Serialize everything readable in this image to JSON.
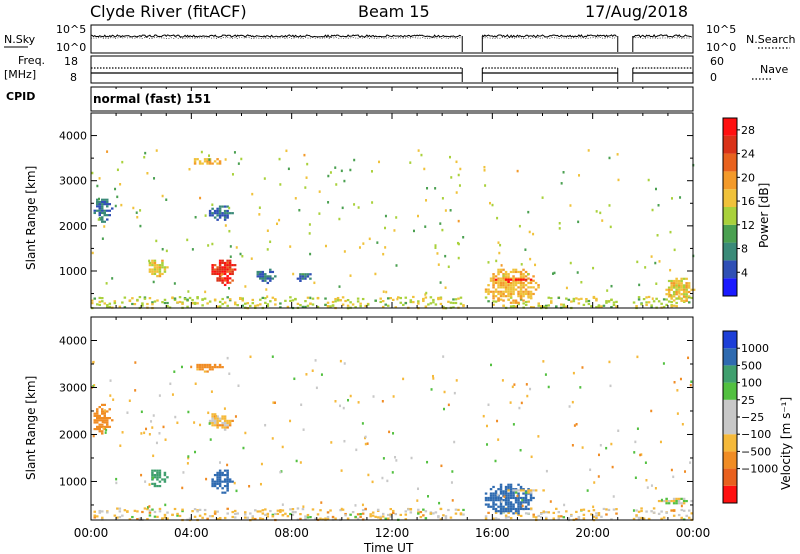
{
  "header": {
    "station": "Clyde River (fitACF)",
    "beam": "Beam 15",
    "date": "17/Aug/2018"
  },
  "control_panel": {
    "nsky_label": "N.Sky",
    "nsearch_label": "N.Search",
    "freq_label": "Freq.",
    "freq_unit": "[MHz]",
    "nave_label": "Nave",
    "cpid_label": "CPID",
    "cpid_value": "normal (fast) 151",
    "noise_left_ticks": [
      "10^5",
      "10^0"
    ],
    "noise_right_ticks": [
      "10^5",
      "10^0"
    ],
    "freq_left_ticks": [
      "18",
      "8"
    ],
    "nave_right_ticks": [
      "60",
      "0"
    ]
  },
  "colors": {
    "power_scale": [
      "#1a1aff",
      "#2f4fb5",
      "#3a8a78",
      "#4aa050",
      "#a9d13b",
      "#f0c23a",
      "#f39a2a",
      "#e8621e",
      "#d93218",
      "#ff1010"
    ],
    "velocity_scale": [
      "#ff1010",
      "#e8601e",
      "#f08c24",
      "#f5b93a",
      "#c8c8c8",
      "#c8c8c8",
      "#52c040",
      "#3f9f6e",
      "#2e6ab0",
      "#1d3fd8"
    ]
  },
  "chart_data": [
    {
      "type": "heatmap",
      "name": "Power range-time plot",
      "xlabel": "",
      "ylabel": "Slant Range [km]",
      "x_ticks": [
        "00:00",
        "04:00",
        "08:00",
        "12:00",
        "16:00",
        "20:00",
        "00:00"
      ],
      "xlim_hours": [
        0,
        24
      ],
      "y_ticks": [
        1000,
        2000,
        3000,
        4000
      ],
      "ylim_km": [
        180,
        4500
      ],
      "colorbar": {
        "label": "Power [dB]",
        "ticks": [
          "4",
          "8",
          "12",
          "16",
          "20",
          "24",
          "28"
        ],
        "range": [
          0,
          30
        ]
      },
      "data_gaps_hours": [
        [
          14.8,
          15.6
        ],
        [
          21.0,
          21.6
        ]
      ],
      "echo_regions": [
        {
          "t0": 0.0,
          "t1": 0.8,
          "r0": 2100,
          "r1": 2700,
          "value": 6
        },
        {
          "t0": 2.2,
          "t1": 3.0,
          "r0": 900,
          "r1": 1300,
          "value": 16
        },
        {
          "t0": 4.0,
          "t1": 5.2,
          "r0": 3350,
          "r1": 3550,
          "value": 18
        },
        {
          "t0": 4.6,
          "t1": 5.6,
          "r0": 2100,
          "r1": 2500,
          "value": 6
        },
        {
          "t0": 4.7,
          "t1": 5.8,
          "r0": 700,
          "r1": 1300,
          "value": 26
        },
        {
          "t0": 6.5,
          "t1": 7.3,
          "r0": 750,
          "r1": 1100,
          "value": 6
        },
        {
          "t0": 8.0,
          "t1": 8.8,
          "r0": 800,
          "r1": 1000,
          "value": 7
        },
        {
          "t0": 15.6,
          "t1": 17.8,
          "r0": 300,
          "r1": 1100,
          "value": 18
        },
        {
          "t0": 16.0,
          "t1": 17.5,
          "r0": 780,
          "r1": 880,
          "value": 28
        },
        {
          "t0": 22.8,
          "t1": 24.0,
          "r0": 300,
          "r1": 900,
          "value": 16
        }
      ]
    },
    {
      "type": "heatmap",
      "name": "Velocity range-time plot",
      "xlabel": "Time UT",
      "ylabel": "Slant Range [km]",
      "x_ticks": [
        "00:00",
        "04:00",
        "08:00",
        "12:00",
        "16:00",
        "20:00",
        "00:00"
      ],
      "xlim_hours": [
        0,
        24
      ],
      "y_ticks": [
        1000,
        2000,
        3000,
        4000
      ],
      "ylim_km": [
        180,
        4500
      ],
      "colorbar": {
        "label": "Velocity [m s⁻¹]",
        "ticks": [
          "1000",
          "500",
          "100",
          "25",
          "−25",
          "−100",
          "−500",
          "−1000"
        ]
      },
      "data_gaps_hours": [
        [
          14.8,
          15.6
        ],
        [
          21.0,
          21.6
        ]
      ],
      "echo_regions": [
        {
          "t0": 0.0,
          "t1": 0.8,
          "r0": 2000,
          "r1": 2700,
          "value": -300
        },
        {
          "t0": 2.2,
          "t1": 3.0,
          "r0": 900,
          "r1": 1300,
          "value": 200
        },
        {
          "t0": 4.0,
          "t1": 5.2,
          "r0": 3350,
          "r1": 3550,
          "value": -150
        },
        {
          "t0": 4.6,
          "t1": 5.6,
          "r0": 2100,
          "r1": 2500,
          "value": -60
        },
        {
          "t0": 4.7,
          "t1": 5.6,
          "r0": 750,
          "r1": 1300,
          "value": 600
        },
        {
          "t0": 15.6,
          "t1": 17.6,
          "r0": 300,
          "r1": 1000,
          "value": 700
        },
        {
          "t0": 16.5,
          "t1": 18.0,
          "r0": 780,
          "r1": 880,
          "value": 0
        },
        {
          "t0": 22.5,
          "t1": 24.0,
          "r0": 550,
          "r1": 700,
          "value": 0
        }
      ]
    }
  ]
}
